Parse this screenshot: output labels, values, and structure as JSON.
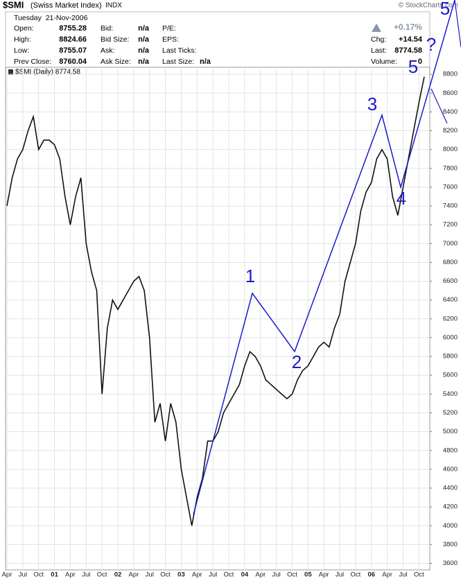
{
  "header": {
    "symbol": "$SMI",
    "name": "(Swiss Market Index)",
    "exchange": "INDX",
    "credit": "© StockCharts.com"
  },
  "quote": {
    "date": "Tuesday  21-Nov-2006",
    "left": [
      {
        "label": "Open:",
        "value": "8755.28"
      },
      {
        "label": "High:",
        "value": "8824.66"
      },
      {
        "label": "Low:",
        "value": "8755.07"
      },
      {
        "label": "Prev Close:",
        "value": "8760.04"
      }
    ],
    "mid": [
      {
        "label": "Bid:",
        "value": "n/a"
      },
      {
        "label": "Bid Size:",
        "value": "n/a"
      },
      {
        "label": "Ask:",
        "value": "n/a"
      },
      {
        "label": "Ask Size:",
        "value": "n/a"
      }
    ],
    "ticks": [
      {
        "label": "P/E:"
      },
      {
        "label": "EPS:"
      },
      {
        "label": "Last Ticks:"
      },
      {
        "label": "Last Size:",
        "value": "n/a"
      }
    ],
    "change_pct": "+0.17%",
    "right": [
      {
        "label": "Chg:",
        "value": "+14.54"
      },
      {
        "label": "Last:",
        "value": "8774.58"
      },
      {
        "label": "Volume:",
        "value": "0"
      }
    ]
  },
  "chart_data": {
    "type": "line",
    "legend": "$SMI (Daily) 8774.58",
    "color": "#111111",
    "categories": [
      "Apr",
      null,
      null,
      "Jul",
      null,
      null,
      "Oct",
      null,
      null,
      "01",
      null,
      null,
      "Apr",
      null,
      null,
      "Jul",
      null,
      null,
      "Oct",
      null,
      null,
      "02",
      null,
      null,
      "Apr",
      null,
      null,
      "Jul",
      null,
      null,
      "Oct",
      null,
      null,
      "03",
      null,
      null,
      "Apr",
      null,
      null,
      "Jul",
      null,
      null,
      "Oct",
      null,
      null,
      "04",
      null,
      null,
      "Apr",
      null,
      null,
      "Jul",
      null,
      null,
      "Oct",
      null,
      null,
      "05",
      null,
      null,
      "Apr",
      null,
      null,
      "Jul",
      null,
      null,
      "Oct",
      null,
      null,
      "06",
      null,
      null,
      "Apr",
      null,
      null,
      "Jul",
      null,
      null,
      "Oct",
      null
    ],
    "values": [
      7400,
      7700,
      7900,
      8000,
      8200,
      8350,
      8000,
      8100,
      8100,
      8050,
      7900,
      7500,
      7200,
      7500,
      7700,
      7000,
      6700,
      6500,
      5400,
      6100,
      6400,
      6300,
      6400,
      6500,
      6600,
      6650,
      6500,
      6000,
      5100,
      5300,
      4900,
      5300,
      5100,
      4600,
      4300,
      4000,
      4300,
      4500,
      4900,
      4900,
      5000,
      5200,
      5300,
      5400,
      5500,
      5700,
      5850,
      5800,
      5700,
      5550,
      5500,
      5450,
      5400,
      5350,
      5400,
      5550,
      5650,
      5700,
      5800,
      5900,
      5950,
      5900,
      6100,
      6250,
      6600,
      6800,
      7000,
      7350,
      7550,
      7650,
      7900,
      8000,
      7900,
      7500,
      7300,
      7600,
      7900,
      8200,
      8500,
      8775
    ],
    "ylim": [
      3530,
      8875
    ],
    "yticks": [
      3600,
      3800,
      4000,
      4200,
      4400,
      4600,
      4800,
      5000,
      5200,
      5400,
      5600,
      5800,
      6000,
      6200,
      6400,
      6600,
      6800,
      7000,
      7200,
      7400,
      7600,
      7800,
      8000,
      8200,
      8400,
      8600,
      8800
    ],
    "grid": true,
    "annotations": [
      "1",
      "2",
      "3",
      "4",
      "5",
      "?",
      "5"
    ]
  }
}
